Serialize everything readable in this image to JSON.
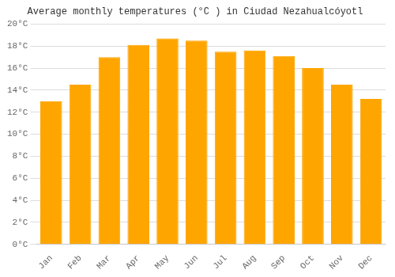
{
  "chart_data": {
    "type": "bar",
    "title": "Average monthly temperatures (°C ) in Ciudad Nezahualcóyotl",
    "categories": [
      "Jan",
      "Feb",
      "Mar",
      "Apr",
      "May",
      "Jun",
      "Jul",
      "Aug",
      "Sep",
      "Oct",
      "Nov",
      "Dec"
    ],
    "values": [
      13.0,
      14.5,
      17.0,
      18.1,
      18.7,
      18.5,
      17.5,
      17.6,
      17.1,
      16.0,
      14.5,
      13.2
    ],
    "color": "#FFA500",
    "ylim": [
      0,
      20
    ],
    "yticks": [
      {
        "value": 0,
        "label": "0°C"
      },
      {
        "value": 2,
        "label": "2°C"
      },
      {
        "value": 4,
        "label": "4°C"
      },
      {
        "value": 6,
        "label": "6°C"
      },
      {
        "value": 8,
        "label": "8°C"
      },
      {
        "value": 10,
        "label": "10°C"
      },
      {
        "value": 12,
        "label": "12°C"
      },
      {
        "value": 14,
        "label": "14°C"
      },
      {
        "value": 16,
        "label": "16°C"
      },
      {
        "value": 18,
        "label": "18°C"
      },
      {
        "value": 20,
        "label": "20°C"
      }
    ],
    "grid": true
  }
}
